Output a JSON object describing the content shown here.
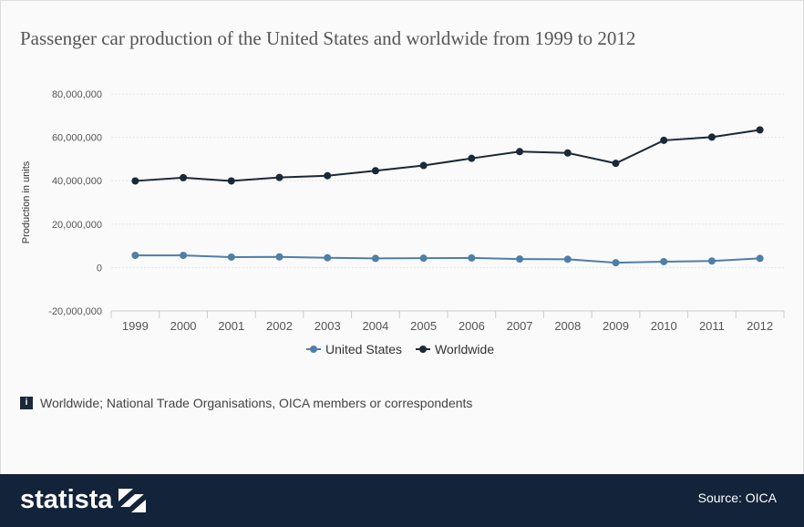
{
  "title": "Passenger car production of the United States and worldwide from 1999 to 2012",
  "note": "Worldwide; National Trade Organisations, OICA members or correspondents",
  "note_icon": "i",
  "footer": {
    "logo": "statista",
    "source": "Source: OICA"
  },
  "chart_data": {
    "type": "line",
    "title": "Passenger car production of the United States and worldwide from 1999 to 2012",
    "ylabel": "Production in units",
    "xlabel": "",
    "ylim": [
      -20000000,
      80000000
    ],
    "yticks": [
      "-20,000,000",
      "0",
      "20,000,000",
      "40,000,000",
      "60,000,000",
      "80,000,000"
    ],
    "grid": true,
    "legend": "bottom",
    "categories": [
      "1999",
      "2000",
      "2001",
      "2002",
      "2003",
      "2004",
      "2005",
      "2006",
      "2007",
      "2008",
      "2009",
      "2010",
      "2011",
      "2012"
    ],
    "series": [
      {
        "name": "United States",
        "color": "#4f7ea8",
        "values": [
          5600000,
          5600000,
          4800000,
          4900000,
          4500000,
          4200000,
          4300000,
          4400000,
          3900000,
          3800000,
          2200000,
          2700000,
          3000000,
          4200000
        ]
      },
      {
        "name": "Worldwide",
        "color": "#1b2838",
        "values": [
          39900000,
          41400000,
          39900000,
          41500000,
          42300000,
          44600000,
          47000000,
          50300000,
          53400000,
          52800000,
          48000000,
          58600000,
          60100000,
          63400000
        ]
      }
    ]
  }
}
